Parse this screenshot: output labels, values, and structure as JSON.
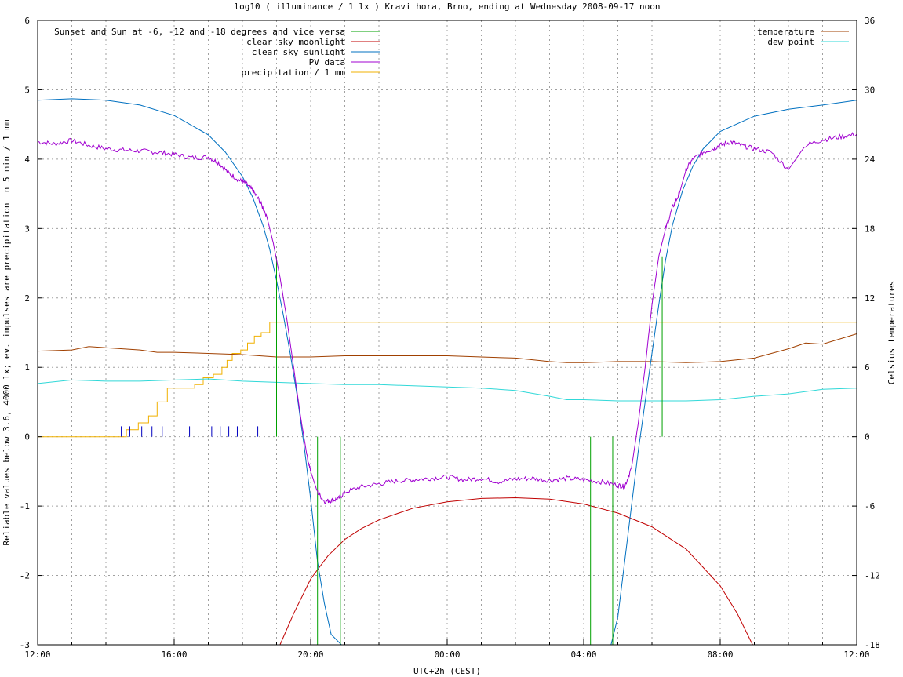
{
  "chart_data": {
    "type": "line",
    "title": "log10 ( illuminance / 1 lx ) Kravi hora, Brno, ending at Wednesday 2008-09-17 noon",
    "xlabel": "UTC+2h (CEST)",
    "ylabel": "Reliable values below 3.6, 4000 lx; ev. impulses are precipitation in 5 min / 1 mm",
    "y2label": "Celsius temperatures",
    "x_unit": "hours since 12:00 (window spans 24 h)",
    "xlim": [
      0,
      24
    ],
    "ylim": [
      -3,
      6
    ],
    "y2lim": [
      -18,
      36
    ],
    "grid": true,
    "legend_placement": "top-left and top-right",
    "x_tick_labels": [
      "12:00",
      "16:00",
      "20:00",
      "00:00",
      "04:00",
      "08:00",
      "12:00"
    ],
    "x_tick_positions": [
      0,
      4,
      8,
      12,
      16,
      20,
      24
    ],
    "y_ticks": [
      "-3",
      "-2",
      "-1",
      "0",
      "1",
      "2",
      "3",
      "4",
      "5",
      "6"
    ],
    "y2_ticks": [
      "-18",
      "-12",
      "-6",
      "0",
      "6",
      "12",
      "18",
      "24",
      "30",
      "36"
    ],
    "legend_left": [
      {
        "name": "Sunset and Sun at -6, -12 and -18 degrees and vice versa",
        "color": "#00a000"
      },
      {
        "name": "clear sky moonlight",
        "color": "#c00000"
      },
      {
        "name": "clear sky sunlight",
        "color": "#0070c0"
      },
      {
        "name": "PV data",
        "color": "#a000d0"
      },
      {
        "name": "precipitation / 1 mm",
        "color": "#f0b000"
      }
    ],
    "legend_right": [
      {
        "name": "temperature",
        "color": "#a04000"
      },
      {
        "name": "dew point",
        "color": "#30d8d8"
      }
    ],
    "sun_events": [
      {
        "x": 7.0,
        "y_top": 2.6
      },
      {
        "x": 8.2,
        "y_top": 0
      },
      {
        "x": 8.87,
        "y_top": 0
      },
      {
        "x": 16.2,
        "y_top": 0
      },
      {
        "x": 16.85,
        "y_top": 0
      },
      {
        "x": 18.3,
        "y_top": 2.6
      }
    ],
    "sunlight": {
      "x": [
        0,
        1,
        2,
        3,
        4,
        5,
        5.5,
        6,
        6.3,
        6.6,
        6.8,
        7.0,
        7.2,
        7.4,
        7.6,
        7.8,
        8.0,
        8.2,
        8.4,
        8.6,
        8.9,
        16.8,
        17.0,
        17.2,
        17.4,
        17.6,
        17.8,
        18.0,
        18.2,
        18.4,
        18.6,
        18.9,
        19.2,
        19.5,
        20,
        21,
        22,
        23,
        24
      ],
      "y": [
        4.85,
        4.87,
        4.85,
        4.78,
        4.63,
        4.35,
        4.1,
        3.75,
        3.45,
        3.05,
        2.7,
        2.25,
        1.75,
        1.2,
        0.6,
        -0.1,
        -0.9,
        -1.8,
        -2.4,
        -2.85,
        -3.0,
        -3.0,
        -2.6,
        -1.8,
        -1.0,
        -0.2,
        0.5,
        1.2,
        1.9,
        2.55,
        3.05,
        3.55,
        3.9,
        4.15,
        4.4,
        4.62,
        4.72,
        4.78,
        4.85
      ]
    },
    "moonlight": {
      "x": [
        7.1,
        7.5,
        8.0,
        8.5,
        9.0,
        9.5,
        10,
        11,
        12,
        13,
        14,
        15,
        16,
        17,
        18,
        19,
        20,
        20.5,
        20.95
      ],
      "y": [
        -3.0,
        -2.55,
        -2.05,
        -1.72,
        -1.48,
        -1.32,
        -1.2,
        -1.03,
        -0.94,
        -0.89,
        -0.88,
        -0.9,
        -0.97,
        -1.1,
        -1.3,
        -1.62,
        -2.15,
        -2.55,
        -3.0
      ]
    },
    "pv": {
      "x": [
        0,
        0.5,
        1,
        1.5,
        2,
        2.5,
        3,
        3.5,
        4,
        4.5,
        5,
        5.3,
        5.6,
        5.9,
        6.1,
        6.3,
        6.5,
        6.7,
        6.9,
        7.1,
        7.3,
        7.5,
        7.7,
        7.9,
        8.0,
        8.2,
        8.4,
        8.6,
        8.8,
        9.0,
        9.5,
        10,
        10.5,
        11,
        11.5,
        12,
        12.5,
        13,
        13.5,
        14,
        14.5,
        15,
        15.5,
        16,
        16.5,
        17,
        17.2,
        17.4,
        17.6,
        17.8,
        18.0,
        18.2,
        18.4,
        18.6,
        18.8,
        19.0,
        19.2,
        19.5,
        19.8,
        20.0,
        20.3,
        20.6,
        21,
        21.5,
        22,
        22.5,
        23,
        23.5,
        24
      ],
      "y": [
        4.25,
        4.22,
        4.27,
        4.2,
        4.15,
        4.13,
        4.12,
        4.1,
        4.07,
        4.02,
        4.03,
        3.95,
        3.8,
        3.7,
        3.65,
        3.55,
        3.4,
        3.2,
        2.8,
        2.3,
        1.7,
        1.0,
        0.3,
        -0.3,
        -0.5,
        -0.8,
        -0.93,
        -0.92,
        -0.9,
        -0.8,
        -0.72,
        -0.68,
        -0.64,
        -0.62,
        -0.6,
        -0.58,
        -0.62,
        -0.6,
        -0.65,
        -0.61,
        -0.6,
        -0.63,
        -0.6,
        -0.62,
        -0.65,
        -0.7,
        -0.72,
        -0.45,
        0.2,
        1.0,
        1.9,
        2.6,
        3.0,
        3.3,
        3.5,
        3.85,
        4.0,
        4.1,
        4.15,
        4.2,
        4.25,
        4.2,
        4.15,
        4.1,
        3.85,
        4.2,
        4.28,
        4.32,
        4.36
      ]
    },
    "precipitation": {
      "x": [
        0,
        2.35,
        2.6,
        2.95,
        3.25,
        3.5,
        3.8,
        4.6,
        4.85,
        5.15,
        5.4,
        5.55,
        5.7,
        5.95,
        6.15,
        6.35,
        6.55,
        6.8,
        24
      ],
      "y": [
        0,
        0,
        0.1,
        0.2,
        0.3,
        0.5,
        0.7,
        0.75,
        0.85,
        0.9,
        1.0,
        1.1,
        1.2,
        1.25,
        1.35,
        1.45,
        1.5,
        1.65,
        1.65
      ]
    },
    "precipitation_impulses": {
      "x": [
        2.45,
        2.7,
        3.05,
        3.35,
        3.65,
        4.45,
        5.1,
        5.35,
        5.6,
        5.85,
        6.45
      ],
      "y": [
        0.15,
        0.15,
        0.15,
        0.15,
        0.15,
        0.15,
        0.15,
        0.15,
        0.15,
        0.15,
        0.15
      ]
    },
    "temperature": {
      "x": [
        0,
        1,
        1.5,
        2,
        3,
        3.5,
        4,
        5,
        6,
        7,
        8,
        9,
        10,
        11,
        12,
        13,
        14,
        15,
        15.5,
        16,
        17,
        18,
        19,
        20,
        21,
        22,
        22.5,
        23,
        24
      ],
      "y2": [
        7.4,
        7.5,
        7.8,
        7.7,
        7.5,
        7.3,
        7.3,
        7.2,
        7.1,
        6.9,
        6.9,
        7.0,
        7.0,
        7.0,
        7.0,
        6.9,
        6.8,
        6.5,
        6.4,
        6.4,
        6.5,
        6.5,
        6.4,
        6.5,
        6.8,
        7.6,
        8.1,
        8.0,
        8.9
      ]
    },
    "dewpoint": {
      "x": [
        0,
        1,
        2,
        3,
        4,
        5,
        6,
        7,
        8,
        9,
        10,
        11,
        12,
        13,
        14,
        15,
        15.5,
        16,
        17,
        18,
        19,
        20,
        21,
        22,
        23,
        24
      ],
      "y2": [
        4.6,
        4.9,
        4.8,
        4.8,
        4.9,
        5.0,
        4.8,
        4.7,
        4.6,
        4.5,
        4.5,
        4.4,
        4.3,
        4.2,
        4.0,
        3.5,
        3.2,
        3.2,
        3.1,
        3.1,
        3.1,
        3.2,
        3.5,
        3.7,
        4.1,
        4.2
      ]
    }
  }
}
